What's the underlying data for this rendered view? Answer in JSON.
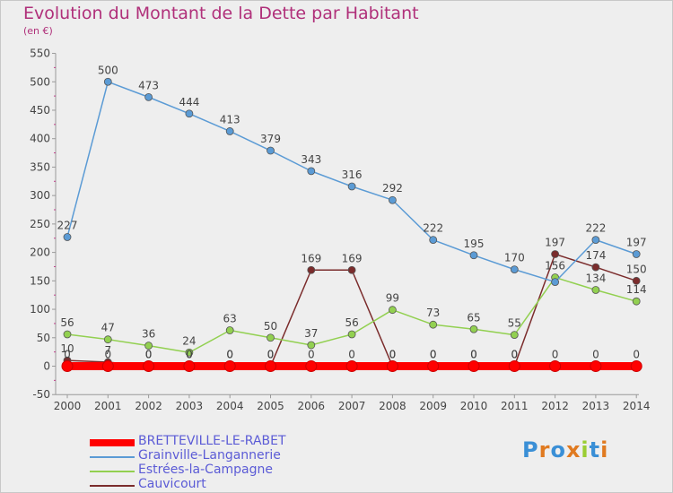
{
  "title": "Evolution du Montant de la Dette par Habitant",
  "subtitle": "(en €)",
  "logo": [
    "P",
    "r",
    "o",
    "x",
    "i",
    "t",
    "i"
  ],
  "logo_colors": [
    "#3a8fd6",
    "#e07a20",
    "#3a8fd6",
    "#e07a20",
    "#9acd32",
    "#3a8fd6",
    "#e07a20"
  ],
  "chart_data": {
    "type": "line",
    "x": [
      "2000",
      "2001",
      "2002",
      "2003",
      "2004",
      "2005",
      "2006",
      "2007",
      "2008",
      "2009",
      "2010",
      "2011",
      "2012",
      "2013",
      "2014"
    ],
    "ylim": [
      -50,
      550
    ],
    "yticks": [
      "-50",
      "0",
      "50",
      "100",
      "150",
      "200",
      "250",
      "300",
      "350",
      "400",
      "450",
      "500",
      "550"
    ],
    "grid": false,
    "series": [
      {
        "name": "BRETTEVILLE-LE-RABET",
        "color": "#ff0000",
        "values": [
          0,
          0,
          0,
          0,
          0,
          0,
          0,
          0,
          0,
          0,
          0,
          0,
          0,
          0,
          0
        ],
        "labels": [
          "0",
          "0",
          "0",
          "0",
          "0",
          "0",
          "0",
          "0",
          "0",
          "0",
          "0",
          "0",
          "0",
          "0",
          "0"
        ]
      },
      {
        "name": "Grainville-Langannerie",
        "color": "#5b9bd5",
        "values": [
          227,
          500,
          473,
          444,
          413,
          379,
          343,
          316,
          292,
          222,
          195,
          170,
          148,
          222,
          197
        ],
        "labels": [
          "227",
          "500",
          "473",
          "444",
          "413",
          "379",
          "343",
          "316",
          "292",
          "222",
          "195",
          "170",
          "",
          "222",
          "197"
        ]
      },
      {
        "name": "Estrées-la-Campagne",
        "color": "#92d050",
        "values": [
          56,
          47,
          36,
          24,
          63,
          50,
          37,
          56,
          99,
          73,
          65,
          55,
          156,
          134,
          114
        ],
        "labels": [
          "56",
          "47",
          "36",
          "24",
          "63",
          "50",
          "37",
          "56",
          "99",
          "73",
          "65",
          "55",
          "156",
          "134",
          "114"
        ]
      },
      {
        "name": "Cauvicourt",
        "color": "#7b2c2c",
        "values": [
          10,
          7,
          0,
          0,
          0,
          0,
          169,
          169,
          0,
          0,
          0,
          0,
          197,
          174,
          150
        ],
        "labels": [
          "10",
          "7",
          "0",
          "0",
          "0",
          "0",
          "169",
          "169",
          "0",
          "0",
          "0",
          "0",
          "197",
          "174",
          "150"
        ]
      }
    ]
  }
}
